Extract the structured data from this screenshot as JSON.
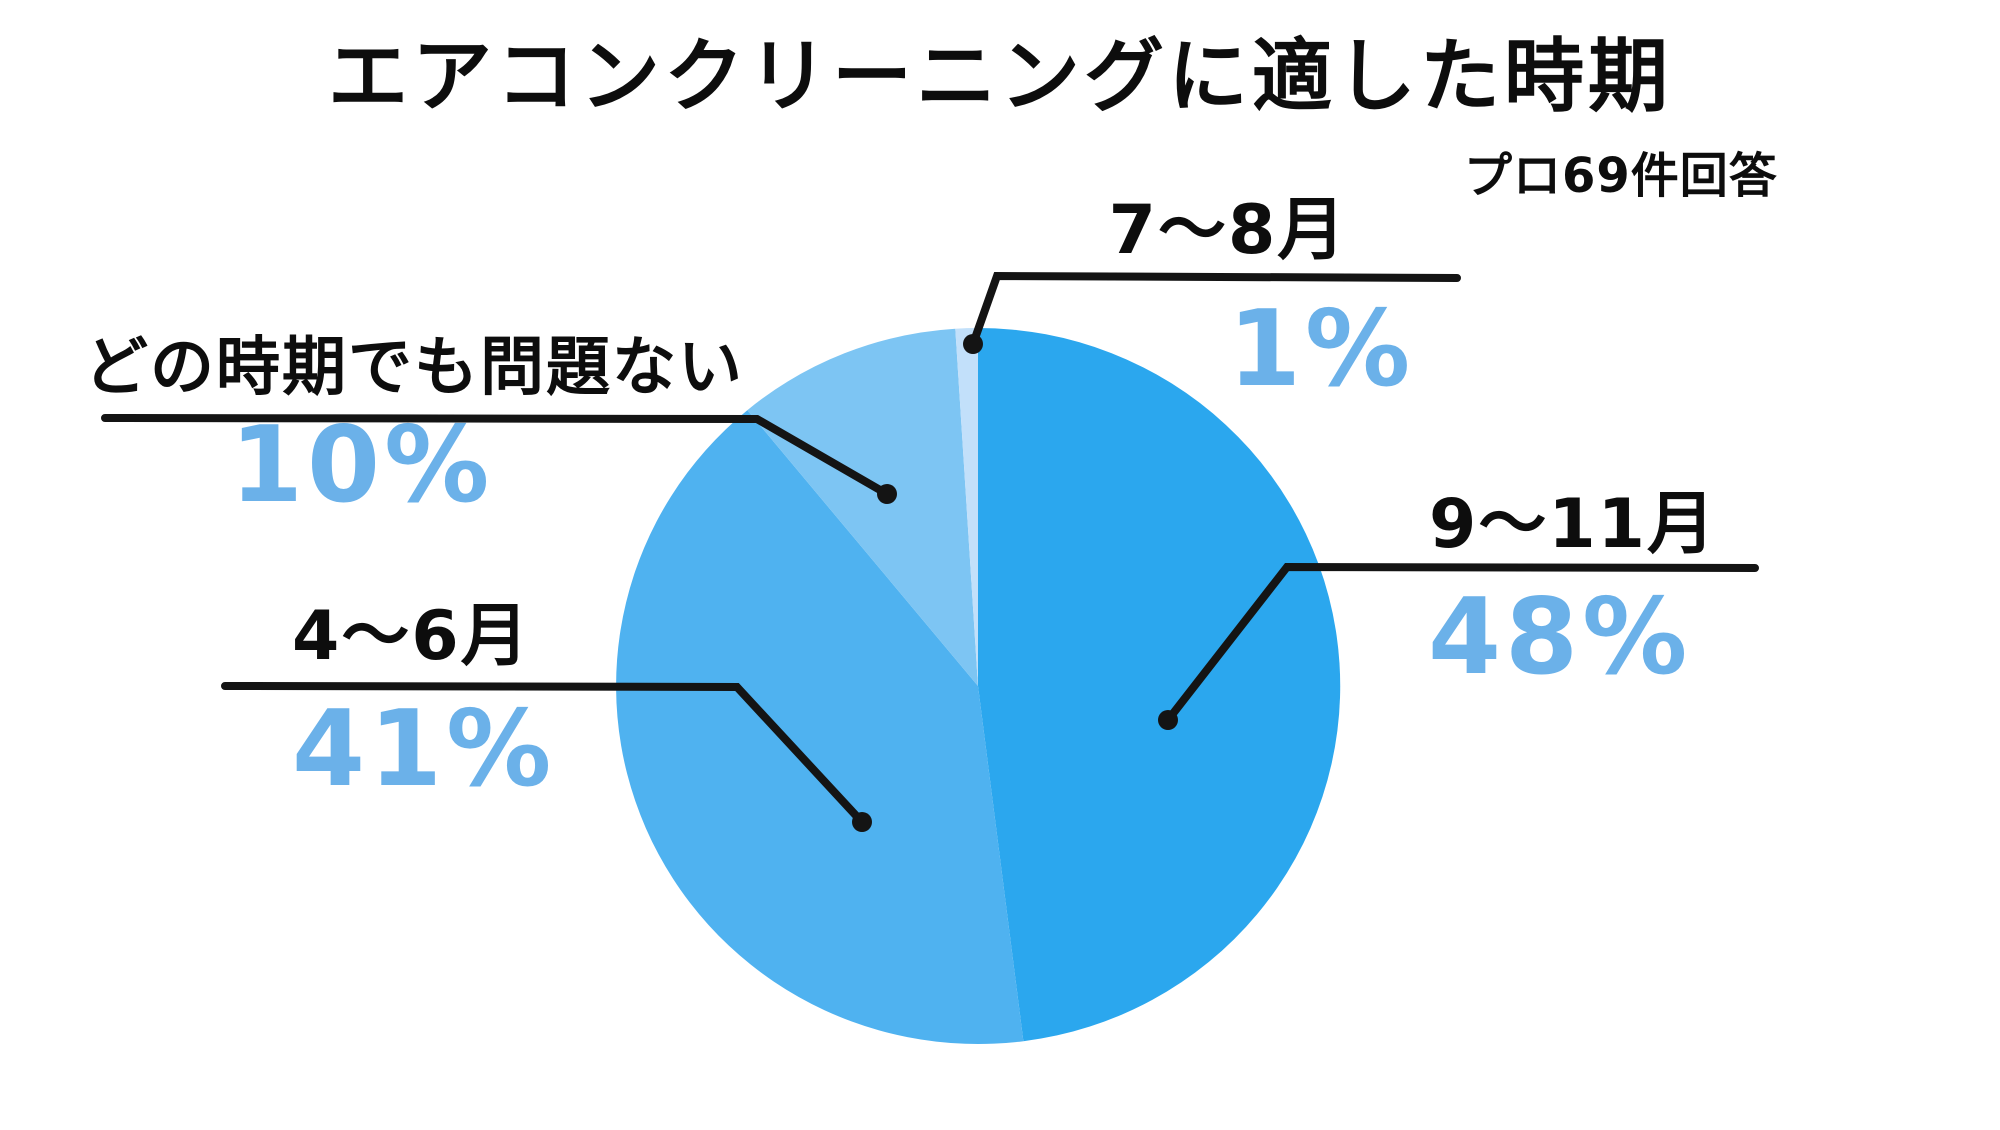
{
  "title": "エアコンクリーニングに適した時期",
  "note": "プロ69件回答",
  "chart_data": {
    "type": "pie",
    "title": "エアコンクリーニングに適した時期",
    "subtitle": "プロ69件回答",
    "start_angle": "top",
    "direction": "clockwise",
    "total": 100,
    "segments": [
      {
        "label": "9〜11月",
        "value": 48,
        "display": "48%",
        "color": "#2ba7ee"
      },
      {
        "label": "4〜6月",
        "value": 41,
        "display": "41%",
        "color": "#4fb2f0"
      },
      {
        "label": "どの時期でも問題ない",
        "value": 10,
        "display": "10%",
        "color": "#7dc5f3"
      },
      {
        "label": "7〜8月",
        "value": 1,
        "display": "1%",
        "color": "#c2e0fa"
      }
    ],
    "value_label_color": "#6bb1e9",
    "leader_line_color": "#141414",
    "background": "#ffffff",
    "legend": "none",
    "labels_style": "external-callouts"
  }
}
